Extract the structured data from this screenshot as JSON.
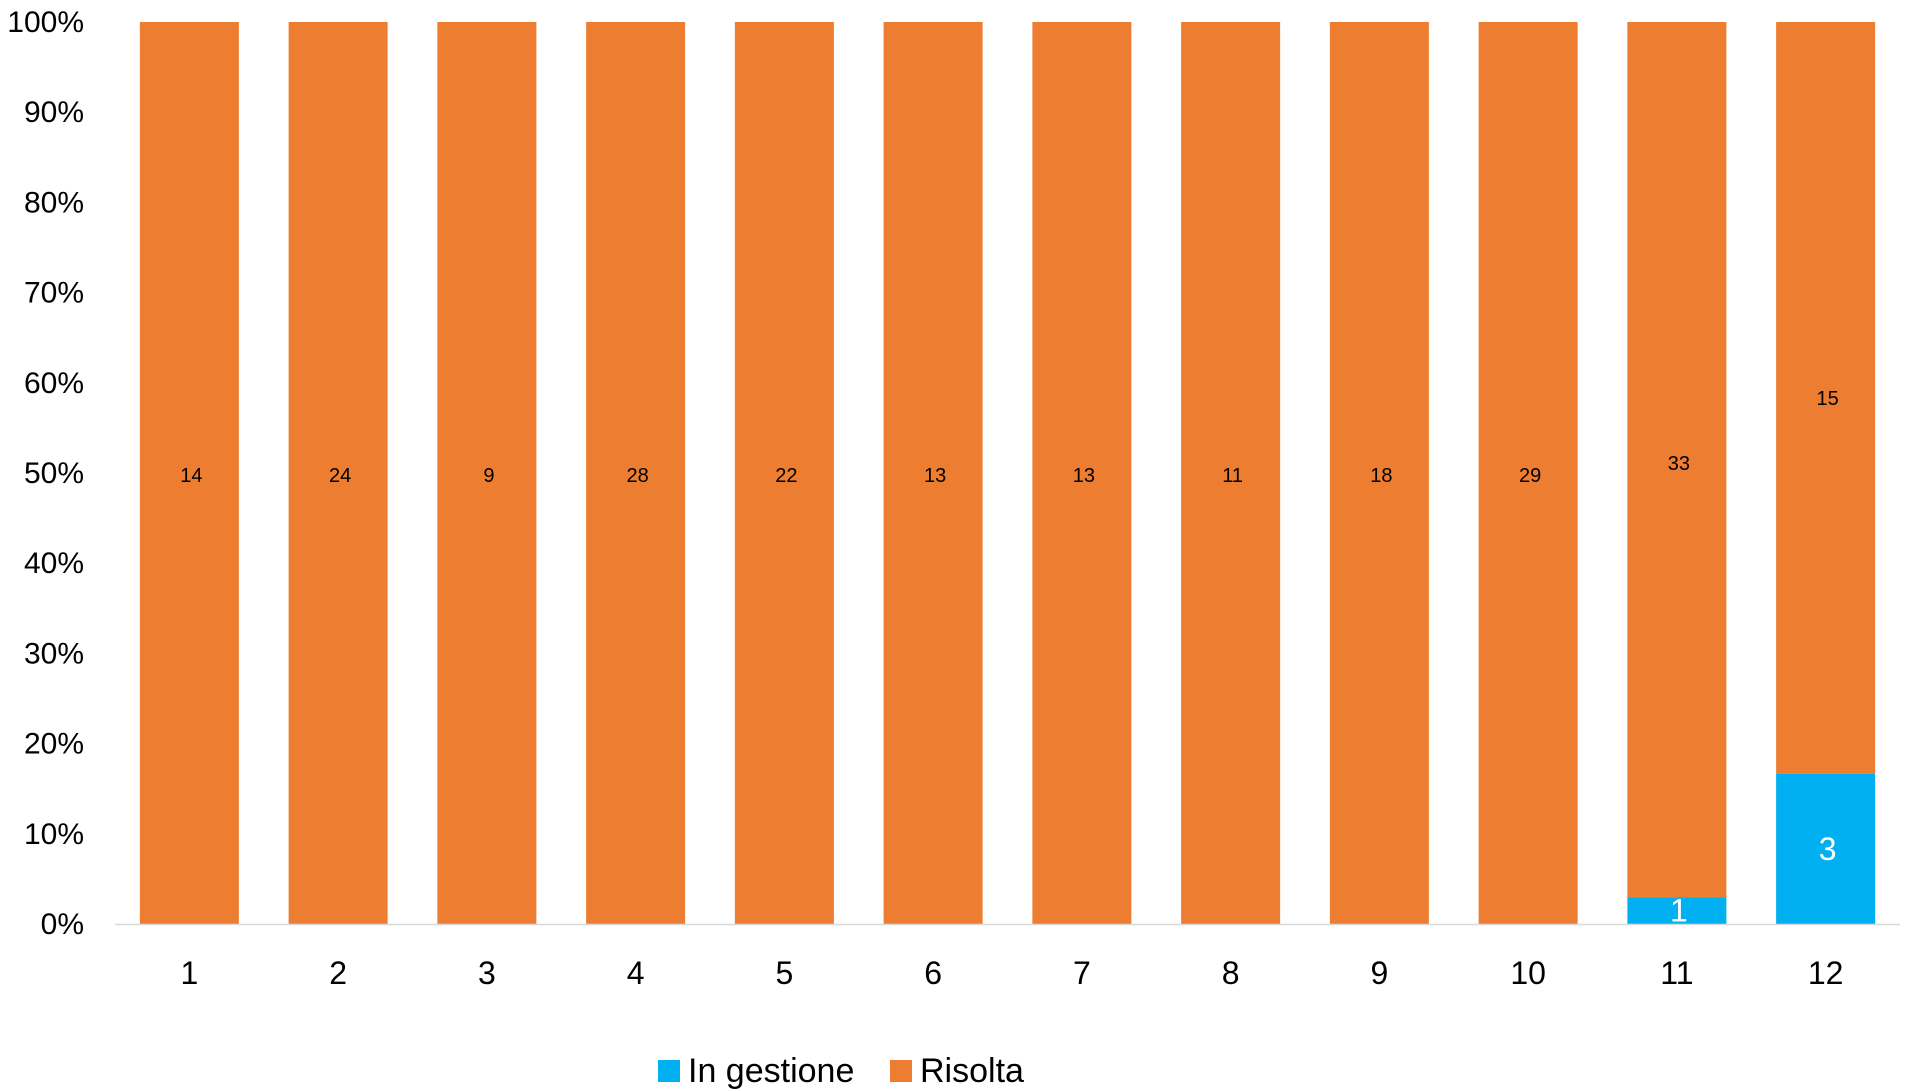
{
  "chart_data": {
    "type": "bar",
    "stacked": "percent",
    "categories": [
      "1",
      "2",
      "3",
      "4",
      "5",
      "6",
      "7",
      "8",
      "9",
      "10",
      "11",
      "12"
    ],
    "series": [
      {
        "name": "In gestione",
        "color": "#00B0F0",
        "values": [
          0,
          0,
          0,
          0,
          0,
          0,
          0,
          0,
          0,
          0,
          1,
          3
        ]
      },
      {
        "name": "Risolta",
        "color": "#ED7D31",
        "values": [
          14,
          24,
          9,
          28,
          22,
          13,
          13,
          11,
          18,
          29,
          33,
          15
        ]
      }
    ],
    "ylim": [
      0,
      100
    ],
    "yticks": [
      "0%",
      "10%",
      "20%",
      "30%",
      "40%",
      "50%",
      "60%",
      "70%",
      "80%",
      "90%",
      "100%"
    ],
    "grid": false,
    "legend_position": "bottom"
  }
}
